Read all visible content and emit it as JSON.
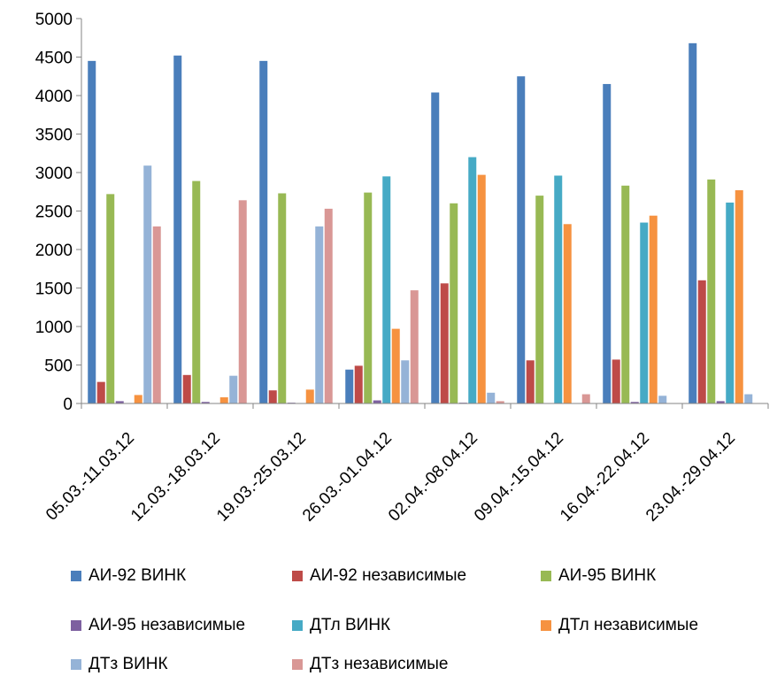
{
  "chart_data": {
    "type": "bar",
    "title": "",
    "xlabel": "",
    "ylabel": "",
    "ylim": [
      0,
      5000
    ],
    "yticks": [
      0,
      500,
      1000,
      1500,
      2000,
      2500,
      3000,
      3500,
      4000,
      4500,
      5000
    ],
    "grid": false,
    "legend_position": "bottom",
    "categories": [
      "05.03.-11.03.12",
      "12.03.-18.03.12",
      "19.03.-25.03.12",
      "26.03.-01.04.12",
      "02.04.-08.04.12",
      "09.04.-15.04.12",
      "16.04.-22.04.12",
      "23.04.-29.04.12"
    ],
    "series": [
      {
        "name": "АИ-92 ВИНК",
        "color": "#4a7ebb",
        "values": [
          4450,
          4520,
          4450,
          440,
          4040,
          4250,
          4150,
          4680
        ]
      },
      {
        "name": "АИ-92 независимые",
        "color": "#be4b48",
        "values": [
          280,
          370,
          170,
          490,
          1560,
          560,
          570,
          1600
        ]
      },
      {
        "name": "АИ-95 ВИНК",
        "color": "#98b954",
        "values": [
          2720,
          2890,
          2730,
          2740,
          2600,
          2700,
          2830,
          2910
        ]
      },
      {
        "name": "АИ-95 независимые",
        "color": "#7d60a0",
        "values": [
          30,
          20,
          10,
          40,
          10,
          0,
          20,
          30
        ]
      },
      {
        "name": "ДТл ВИНК",
        "color": "#46aac5",
        "values": [
          0,
          0,
          0,
          2950,
          3200,
          2960,
          2350,
          2610
        ]
      },
      {
        "name": "ДТл независимые",
        "color": "#f69240",
        "values": [
          110,
          80,
          180,
          970,
          2970,
          2330,
          2440,
          2770
        ]
      },
      {
        "name": "ДТз ВИНК",
        "color": "#95b3d7",
        "values": [
          3090,
          360,
          2300,
          560,
          140,
          0,
          100,
          120
        ]
      },
      {
        "name": "ДТз независимые",
        "color": "#d99795",
        "values": [
          2300,
          2640,
          2530,
          1470,
          30,
          120,
          0,
          0
        ]
      }
    ]
  }
}
